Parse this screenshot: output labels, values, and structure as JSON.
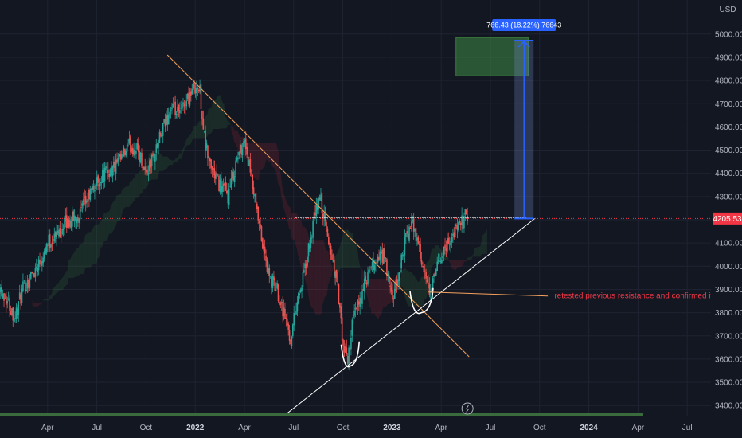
{
  "chart_data": {
    "type": "candlestick",
    "unit": "USD",
    "ylim": [
      3350,
      5140
    ],
    "y_ticks": [
      3400,
      3500,
      3600,
      3700,
      3800,
      3900,
      4000,
      4100,
      4200,
      4300,
      4400,
      4500,
      4600,
      4700,
      4800,
      4900,
      5000
    ],
    "y_tick_labels": [
      "3400.00",
      "3500.00",
      "3600.00",
      "3700.00",
      "3800.00",
      "3900.00",
      "4000.00",
      "4100.00",
      "4200.00",
      "4300.00",
      "4400.00",
      "4500.00",
      "4600.00",
      "4700.00",
      "4800.00",
      "4900.00",
      "5000.00"
    ],
    "x_ticks": [
      {
        "label": "Apr",
        "month": 3,
        "major": false
      },
      {
        "label": "Jul",
        "month": 6,
        "major": false
      },
      {
        "label": "Oct",
        "month": 9,
        "major": false
      },
      {
        "label": "2022",
        "month": 12,
        "major": true
      },
      {
        "label": "Apr",
        "month": 15,
        "major": false
      },
      {
        "label": "Jul",
        "month": 18,
        "major": false
      },
      {
        "label": "Oct",
        "month": 21,
        "major": false
      },
      {
        "label": "2023",
        "month": 24,
        "major": true
      },
      {
        "label": "Apr",
        "month": 27,
        "major": false
      },
      {
        "label": "Jul",
        "month": 30,
        "major": false
      },
      {
        "label": "Oct",
        "month": 33,
        "major": false
      },
      {
        "label": "2024",
        "month": 36,
        "major": true
      },
      {
        "label": "Apr",
        "month": 39,
        "major": false
      },
      {
        "label": "Jul",
        "month": 42,
        "major": false
      }
    ],
    "price_path": [
      [
        0.0,
        3920
      ],
      [
        0.5,
        3860
      ],
      [
        1.0,
        3780
      ],
      [
        1.5,
        3900
      ],
      [
        2.0,
        3960
      ],
      [
        2.5,
        4020
      ],
      [
        3.0,
        4100
      ],
      [
        3.5,
        4130
      ],
      [
        4.0,
        4180
      ],
      [
        4.5,
        4200
      ],
      [
        5.0,
        4230
      ],
      [
        5.5,
        4300
      ],
      [
        6.0,
        4360
      ],
      [
        6.5,
        4400
      ],
      [
        7.0,
        4420
      ],
      [
        7.5,
        4460
      ],
      [
        8.0,
        4520
      ],
      [
        8.5,
        4500
      ],
      [
        9.0,
        4400
      ],
      [
        9.5,
        4480
      ],
      [
        10.0,
        4580
      ],
      [
        10.5,
        4680
      ],
      [
        11.0,
        4650
      ],
      [
        11.5,
        4720
      ],
      [
        12.0,
        4780
      ],
      [
        12.3,
        4750
      ],
      [
        12.6,
        4520
      ],
      [
        13.0,
        4420
      ],
      [
        13.5,
        4350
      ],
      [
        14.0,
        4300
      ],
      [
        14.5,
        4450
      ],
      [
        15.0,
        4550
      ],
      [
        15.3,
        4420
      ],
      [
        15.7,
        4250
      ],
      [
        16.0,
        4130
      ],
      [
        16.5,
        3950
      ],
      [
        17.0,
        3900
      ],
      [
        17.5,
        3780
      ],
      [
        17.8,
        3680
      ],
      [
        18.2,
        3850
      ],
      [
        18.6,
        3950
      ],
      [
        19.0,
        4100
      ],
      [
        19.3,
        4220
      ],
      [
        19.6,
        4300
      ],
      [
        20.0,
        4150
      ],
      [
        20.3,
        4050
      ],
      [
        20.7,
        3900
      ],
      [
        21.0,
        3650
      ],
      [
        21.3,
        3600
      ],
      [
        21.6,
        3760
      ],
      [
        22.0,
        3850
      ],
      [
        22.5,
        3950
      ],
      [
        23.0,
        4020
      ],
      [
        23.5,
        4050
      ],
      [
        24.0,
        3850
      ],
      [
        24.3,
        3920
      ],
      [
        24.7,
        4080
      ],
      [
        25.0,
        4150
      ],
      [
        25.3,
        4180
      ],
      [
        25.6,
        4100
      ],
      [
        26.0,
        3950
      ],
      [
        26.3,
        3880
      ],
      [
        26.6,
        3950
      ],
      [
        27.0,
        4050
      ],
      [
        27.4,
        4100
      ],
      [
        27.8,
        4150
      ],
      [
        28.2,
        4180
      ],
      [
        28.6,
        4230
      ]
    ],
    "current_price": "4205.53",
    "current_price_value": 4205.53,
    "measure_label": "766.43 (18.22%) 76643",
    "measure_from": 4205.53,
    "measure_to": 4971.96,
    "target_zone": [
      4820,
      4985
    ],
    "target_zone_months": [
      27.9,
      32.3
    ],
    "measure_month": 32.05,
    "annotation": "retested previous resistance and confirmed it as a support",
    "annotation_price": 3875,
    "downtrend_line": [
      [
        10.3,
        4910
      ],
      [
        28.7,
        3610
      ]
    ],
    "uptrend_line": [
      [
        17.4,
        3355
      ],
      [
        32.7,
        4205
      ]
    ],
    "resistance_line": [
      [
        18.1,
        4210
      ],
      [
        32.2,
        4210
      ]
    ],
    "cup_left_months": [
      20.9,
      22.0
    ],
    "cup_left_bottom": 3570,
    "cup_right_months": [
      25.1,
      26.5
    ],
    "cup_right_bottom": 3800
  }
}
